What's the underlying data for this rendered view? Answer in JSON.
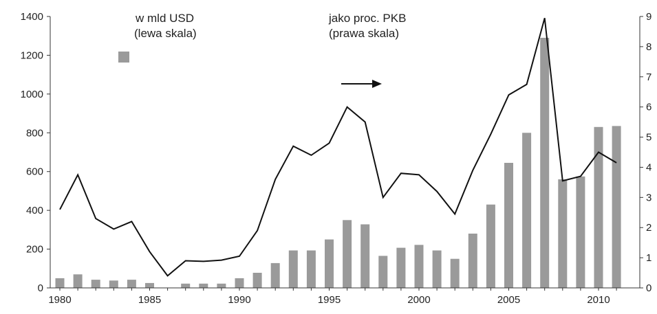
{
  "chart_data": {
    "type": "bar+line",
    "x": [
      1980,
      1981,
      1982,
      1983,
      1984,
      1985,
      1986,
      1987,
      1988,
      1989,
      1990,
      1991,
      1992,
      1993,
      1994,
      1995,
      1996,
      1997,
      1998,
      1999,
      2000,
      2001,
      2002,
      2003,
      2004,
      2005,
      2006,
      2007,
      2008,
      2009,
      2010,
      2011
    ],
    "series": [
      {
        "name": "w mld USD (lewa skala)",
        "type": "bar",
        "axis": "left",
        "color": "#9a9a9a",
        "values": [
          50,
          70,
          42,
          38,
          42,
          25,
          0,
          22,
          22,
          22,
          50,
          78,
          128,
          193,
          193,
          250,
          350,
          328,
          165,
          207,
          222,
          193,
          150,
          280,
          430,
          645,
          800,
          1290,
          560,
          575,
          830,
          835
        ]
      },
      {
        "name": "jako proc. PKB (prawa skala)",
        "type": "line",
        "axis": "right",
        "color": "#111111",
        "values": [
          2.6,
          3.75,
          2.3,
          1.95,
          2.2,
          1.2,
          0.4,
          0.9,
          0.88,
          0.92,
          1.05,
          1.9,
          3.6,
          4.7,
          4.4,
          4.8,
          6.0,
          5.5,
          3.0,
          3.8,
          3.75,
          3.2,
          2.45,
          3.9,
          5.1,
          6.4,
          6.75,
          8.95,
          3.55,
          3.7,
          4.5,
          4.15
        ]
      }
    ],
    "legend": {
      "bar_label_1": "w mld USD",
      "bar_label_2": "(lewa skala)",
      "line_label_1": "jako proc. PKB",
      "line_label_2": "(prawa skala)"
    },
    "y_left": {
      "min": 0,
      "max": 1400,
      "ticks": [
        0,
        200,
        400,
        600,
        800,
        1000,
        1200,
        1400
      ]
    },
    "y_right": {
      "min": 0,
      "max": 9,
      "ticks": [
        0,
        1,
        2,
        3,
        4,
        5,
        6,
        7,
        8,
        9
      ]
    },
    "x_ticks": [
      1980,
      1985,
      1990,
      1995,
      2000,
      2005,
      2010
    ],
    "title": "",
    "xlabel": "",
    "ylabel": "",
    "grid": false
  }
}
